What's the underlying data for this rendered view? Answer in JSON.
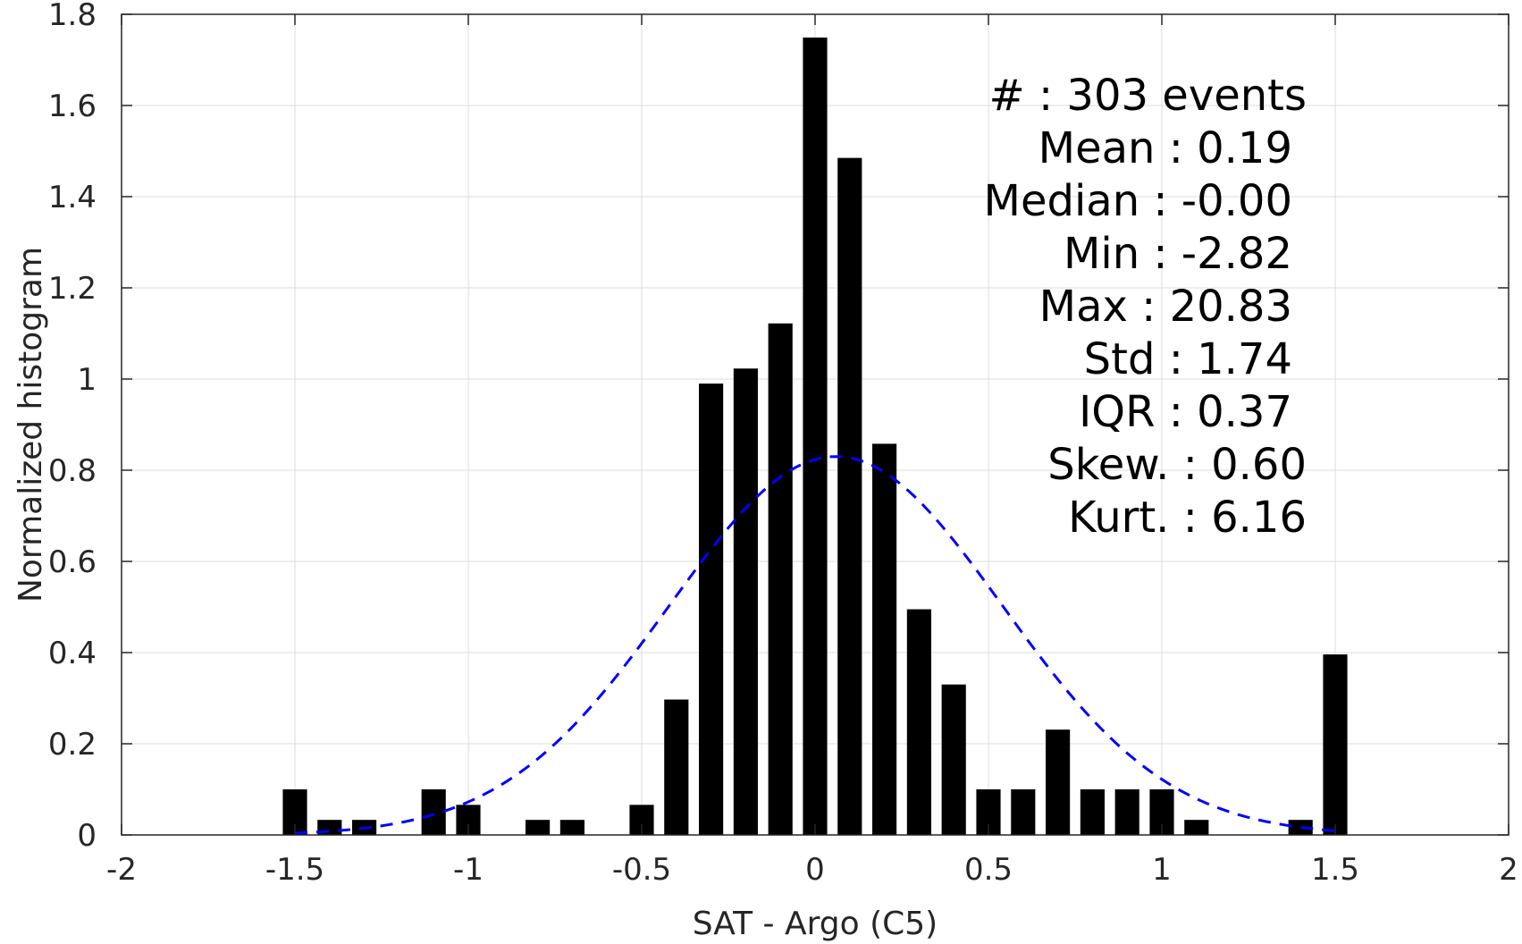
{
  "chart_data": {
    "type": "bar",
    "xlabel": "SAT - Argo (C5)",
    "ylabel": "Normalized histogram",
    "xlim": [
      -2,
      2
    ],
    "ylim": [
      0,
      1.8
    ],
    "xticks": [
      "-2",
      "-1.5",
      "-1",
      "-0.5",
      "0",
      "0.5",
      "1",
      "1.5",
      "2"
    ],
    "yticks": [
      "0",
      "0.2",
      "0.4",
      "0.6",
      "0.8",
      "1",
      "1.2",
      "1.4",
      "1.6",
      "1.8"
    ],
    "grid": true,
    "bar_width": 0.07,
    "bars": [
      {
        "x": -1.5,
        "y": 0.1
      },
      {
        "x": -1.4,
        "y": 0.033
      },
      {
        "x": -1.3,
        "y": 0.033
      },
      {
        "x": -1.1,
        "y": 0.1
      },
      {
        "x": -1.0,
        "y": 0.066
      },
      {
        "x": -0.8,
        "y": 0.033
      },
      {
        "x": -0.7,
        "y": 0.033
      },
      {
        "x": -0.5,
        "y": 0.066
      },
      {
        "x": -0.4,
        "y": 0.297
      },
      {
        "x": -0.3,
        "y": 0.99
      },
      {
        "x": -0.2,
        "y": 1.023
      },
      {
        "x": -0.1,
        "y": 1.122
      },
      {
        "x": 0.0,
        "y": 1.749
      },
      {
        "x": 0.1,
        "y": 1.485
      },
      {
        "x": 0.2,
        "y": 0.858
      },
      {
        "x": 0.3,
        "y": 0.495
      },
      {
        "x": 0.4,
        "y": 0.33
      },
      {
        "x": 0.5,
        "y": 0.1
      },
      {
        "x": 0.6,
        "y": 0.1
      },
      {
        "x": 0.7,
        "y": 0.231
      },
      {
        "x": 0.8,
        "y": 0.1
      },
      {
        "x": 0.9,
        "y": 0.1
      },
      {
        "x": 1.0,
        "y": 0.1
      },
      {
        "x": 1.1,
        "y": 0.033
      },
      {
        "x": 1.4,
        "y": 0.033
      },
      {
        "x": 1.5,
        "y": 0.396
      }
    ],
    "fit_curve": {
      "style": "dashed",
      "color": "#0000ff",
      "x_range": [
        -1.5,
        1.5
      ],
      "mean": 0.06,
      "std": 0.48,
      "peak": 0.83
    },
    "bar_color": "#000000",
    "annotations": [
      "#  : 303 events",
      "Mean : 0.19",
      "Median : -0.00",
      "Min : -2.82",
      "Max : 20.83",
      "Std : 1.74",
      "IQR : 0.37",
      "Skew. : 0.60",
      "Kurt. : 6.16"
    ]
  }
}
